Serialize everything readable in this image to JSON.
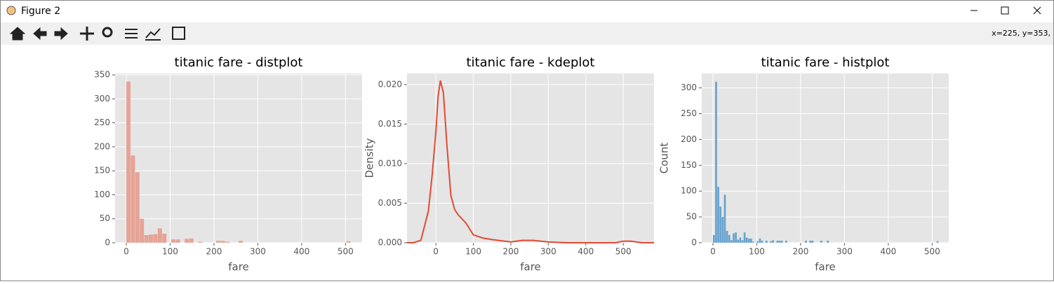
{
  "window": {
    "title": "Figure 2",
    "status": "x=225, y=353,"
  },
  "chart_data": [
    {
      "type": "histogram",
      "title": "titanic fare - distplot",
      "xlabel": "fare",
      "color": "#e6a496",
      "bins": [
        0,
        10.25,
        20.49,
        30.74,
        40.99,
        51.23,
        61.48,
        71.73,
        81.97,
        92.22,
        102.47,
        112.71,
        122.96,
        133.21,
        143.45,
        153.7,
        163.95,
        174.19,
        184.44,
        194.69,
        204.93,
        215.18,
        225.43,
        235.68,
        245.92,
        256.17,
        266.41,
        276.66,
        286.91,
        297.15,
        307.4,
        317.65,
        327.89,
        338.14,
        348.39,
        358.63,
        368.88,
        379.13,
        389.37,
        399.62,
        409.87,
        420.11,
        430.36,
        440.61,
        450.85,
        461.1,
        471.35,
        481.59,
        491.84,
        502.09,
        512.33
      ],
      "values": [
        336,
        182,
        147,
        50,
        16,
        17,
        18,
        30,
        19,
        0,
        7,
        7,
        0,
        8,
        9,
        0,
        2,
        0,
        0,
        0,
        4,
        4,
        2,
        0,
        0,
        4,
        0,
        0,
        0,
        0,
        0,
        0,
        0,
        0,
        0,
        0,
        0,
        0,
        0,
        0,
        0,
        0,
        0,
        0,
        0,
        0,
        0,
        0,
        0,
        3
      ],
      "xlim": [
        -25.6,
        537.9
      ],
      "ylim": [
        0,
        353
      ],
      "xticks": [
        0,
        100,
        200,
        300,
        400,
        500
      ],
      "yticks": [
        0,
        50,
        100,
        150,
        200,
        250,
        300,
        350
      ],
      "grid": true
    },
    {
      "type": "line",
      "title": "titanic fare - kdeplot",
      "xlabel": "fare",
      "ylabel": "Density",
      "color": "#E24A33",
      "x": [
        -77,
        -60,
        -40,
        -20,
        -10,
        0,
        6,
        12,
        20,
        30,
        40,
        50,
        60,
        80,
        100,
        125,
        150,
        200,
        230,
        260,
        300,
        350,
        400,
        480,
        500,
        520,
        550,
        582
      ],
      "values": [
        0,
        0,
        0.0003,
        0.004,
        0.0085,
        0.014,
        0.0185,
        0.0205,
        0.019,
        0.012,
        0.006,
        0.0042,
        0.0035,
        0.0025,
        0.001,
        0.0006,
        0.0004,
        0.0001,
        0.0003,
        0.0003,
        0.0001,
        0,
        0,
        0,
        0.0002,
        0.0002,
        0,
        0
      ],
      "xlim": [
        -77,
        582
      ],
      "ylim": [
        0,
        0.0214
      ],
      "xticks": [
        0,
        100,
        200,
        300,
        400,
        500
      ],
      "yticks": [
        {
          "value": 0,
          "label": "0.000"
        },
        {
          "value": 0.005,
          "label": "0.005"
        },
        {
          "value": 0.01,
          "label": "0.010"
        },
        {
          "value": 0.015,
          "label": "0.015"
        },
        {
          "value": 0.02,
          "label": "0.020"
        }
      ],
      "grid": true
    },
    {
      "type": "histogram",
      "title": "titanic fare - histplot",
      "xlabel": "fare",
      "ylabel": "Count",
      "color": "#68a3cf",
      "bins": [
        0,
        5,
        10,
        15,
        20,
        25,
        30,
        35,
        40,
        45,
        50,
        55,
        60,
        65,
        70,
        75,
        80,
        85,
        90,
        95,
        100,
        105,
        110,
        115,
        120,
        125,
        130,
        135,
        140,
        145,
        150,
        155,
        160,
        165,
        170,
        175,
        180,
        185,
        190,
        195,
        200,
        205,
        210,
        215,
        220,
        225,
        230,
        235,
        240,
        245,
        250,
        255,
        260,
        265,
        270,
        275,
        280,
        285,
        290,
        295,
        300,
        305,
        310,
        315,
        320,
        325,
        330,
        335,
        340,
        345,
        350,
        355,
        360,
        365,
        370,
        375,
        380,
        385,
        390,
        395,
        400,
        405,
        410,
        415,
        420,
        425,
        430,
        435,
        440,
        445,
        450,
        455,
        460,
        465,
        470,
        475,
        480,
        485,
        490,
        495,
        500,
        505,
        510,
        515
      ],
      "values": [
        15,
        312,
        108,
        70,
        50,
        93,
        23,
        15,
        5,
        18,
        20,
        6,
        10,
        5,
        20,
        10,
        8,
        8,
        2,
        0,
        3,
        8,
        4,
        0,
        4,
        0,
        3,
        5,
        0,
        4,
        4,
        4,
        0,
        4,
        0,
        0,
        0,
        0,
        0,
        0,
        0,
        0,
        4,
        0,
        4,
        4,
        0,
        0,
        0,
        4,
        0,
        0,
        4,
        0,
        0,
        0,
        0,
        0,
        0,
        0,
        0,
        0,
        0,
        0,
        0,
        0,
        0,
        0,
        0,
        0,
        0,
        0,
        0,
        0,
        0,
        0,
        0,
        0,
        0,
        0,
        0,
        0,
        0,
        0,
        0,
        0,
        0,
        0,
        0,
        0,
        0,
        0,
        0,
        0,
        0,
        0,
        0,
        0,
        0,
        0,
        0,
        0,
        3
      ],
      "xlim": [
        -25.6,
        537.9
      ],
      "ylim": [
        0,
        328
      ],
      "xticks": [
        0,
        100,
        200,
        300,
        400,
        500
      ],
      "yticks": [
        0,
        50,
        100,
        150,
        200,
        250,
        300
      ],
      "grid": true
    }
  ]
}
